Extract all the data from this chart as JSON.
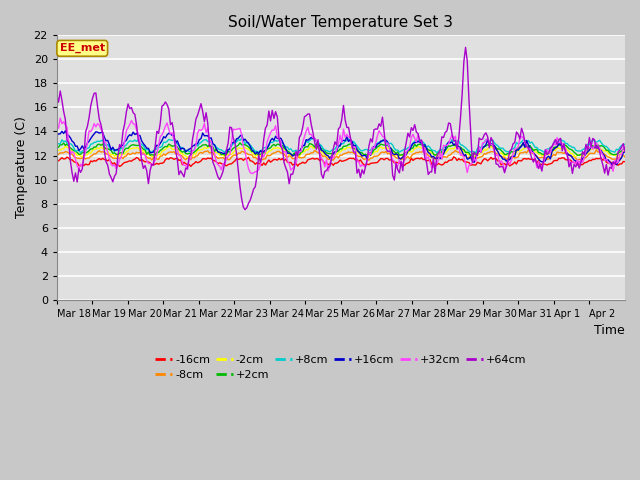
{
  "title": "Soil/Water Temperature Set 3",
  "xlabel": "Time",
  "ylabel": "Temperature (C)",
  "ylim": [
    0,
    22
  ],
  "yticks": [
    0,
    2,
    4,
    6,
    8,
    10,
    12,
    14,
    16,
    18,
    20,
    22
  ],
  "fig_bg_color": "#c8c8c8",
  "plot_bg_color": "#e0e0e0",
  "legend_label": "EE_met",
  "series_labels": [
    "-16cm",
    "-8cm",
    "-2cm",
    "+2cm",
    "+8cm",
    "+16cm",
    "+32cm",
    "+64cm"
  ],
  "series_colors": [
    "#ff0000",
    "#ff8800",
    "#ffff00",
    "#00bb00",
    "#00cccc",
    "#0000cc",
    "#ff44ff",
    "#aa00cc"
  ],
  "n_points": 336,
  "seed": 42
}
